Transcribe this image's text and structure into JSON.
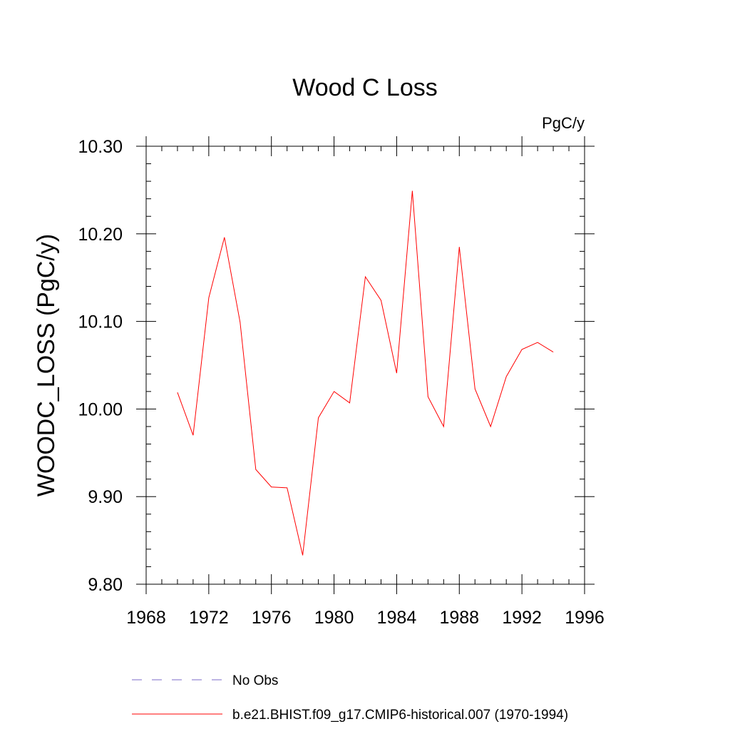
{
  "chart_data": {
    "type": "line",
    "title": "Wood C Loss",
    "units_label": "PgC/y",
    "xlabel": "",
    "ylabel": "WOODC_LOSS  (PgC/y)",
    "xlim": [
      1968,
      1996
    ],
    "ylim": [
      9.8,
      10.3
    ],
    "x_ticks": [
      1968,
      1972,
      1976,
      1980,
      1984,
      1988,
      1992,
      1996
    ],
    "y_ticks": [
      "9.80",
      "9.90",
      "10.00",
      "10.10",
      "10.20",
      "10.30"
    ],
    "series": [
      {
        "name": "b.e21.BHIST.f09_g17.CMIP6-historical.007 (1970-1994)",
        "color": "#ff0000",
        "x": [
          1970,
          1971,
          1972,
          1973,
          1974,
          1975,
          1976,
          1977,
          1978,
          1979,
          1980,
          1981,
          1982,
          1983,
          1984,
          1985,
          1986,
          1987,
          1988,
          1989,
          1990,
          1991,
          1992,
          1993,
          1994
        ],
        "y": [
          10.019,
          9.97,
          10.127,
          10.196,
          10.099,
          9.931,
          9.911,
          9.91,
          9.833,
          9.99,
          10.02,
          10.007,
          10.151,
          10.124,
          10.041,
          10.249,
          10.014,
          9.98,
          10.185,
          10.023,
          9.98,
          10.037,
          10.068,
          10.076,
          10.065
        ]
      }
    ],
    "legend": [
      {
        "label": "No Obs",
        "color": "#7b68c8",
        "style": "dashed"
      },
      {
        "label": "b.e21.BHIST.f09_g17.CMIP6-historical.007 (1970-1994)",
        "color": "#ff0000",
        "style": "solid"
      }
    ]
  }
}
